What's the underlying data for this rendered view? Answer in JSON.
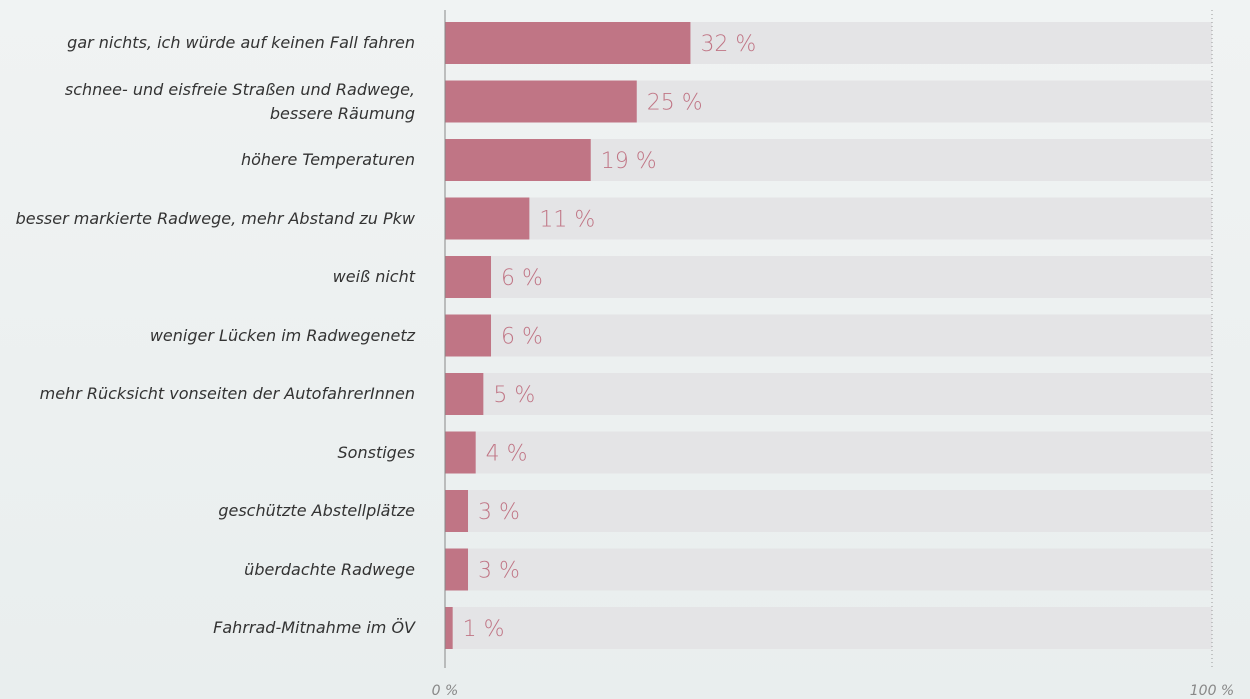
{
  "chart_data": {
    "type": "bar",
    "orientation": "horizontal",
    "categories": [
      "gar nichts, ich würde auf keinen Fall fahren",
      "schnee- und eisfreie Straßen und Radwege,\nbessere Räumung",
      "höhere Temperaturen",
      "besser markierte Radwege, mehr Abstand zu Pkw",
      "weiß nicht",
      "weniger Lücken im Radwegenetz",
      "mehr Rücksicht vonseiten der AutofahrerInnen",
      "Sonstiges",
      "geschützte Abstellplätze",
      "überdachte Radwege",
      "Fahrrad-Mitnahme im ÖV"
    ],
    "values": [
      32,
      25,
      19,
      11,
      6,
      6,
      5,
      4,
      3,
      3,
      1
    ],
    "value_labels": [
      "32 %",
      "25 %",
      "19 %",
      "11 %",
      "6 %",
      "6 %",
      "5 %",
      "4 %",
      "3 %",
      "3 %",
      "1 %"
    ],
    "color": "#c07585",
    "xlim": [
      0,
      100
    ],
    "xticks": [
      {
        "value": 0,
        "label": "0 %"
      },
      {
        "value": 100,
        "label": "100 %"
      }
    ]
  }
}
